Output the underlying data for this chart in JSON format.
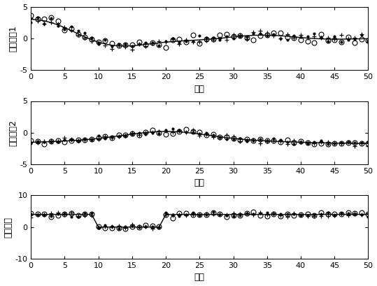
{
  "xlim": [
    0,
    50
  ],
  "xticks": [
    0,
    5,
    10,
    15,
    20,
    25,
    30,
    35,
    40,
    45,
    50
  ],
  "subplot1": {
    "ylim": [
      -5,
      5
    ],
    "yticks": [
      -5,
      0,
      5
    ],
    "ylabel": "状态分量1",
    "xlabel": "时刻"
  },
  "subplot2": {
    "ylim": [
      -5,
      5
    ],
    "yticks": [
      -5,
      0,
      5
    ],
    "ylabel": "状态分量2",
    "xlabel": "时刻"
  },
  "subplot3": {
    "ylim": [
      -10,
      10
    ],
    "yticks": [
      -10,
      0,
      10
    ],
    "ylabel": "未知输入",
    "xlabel": "时刻"
  },
  "n_points": 51,
  "bg_color": "#ffffff",
  "line_color": "#000000"
}
